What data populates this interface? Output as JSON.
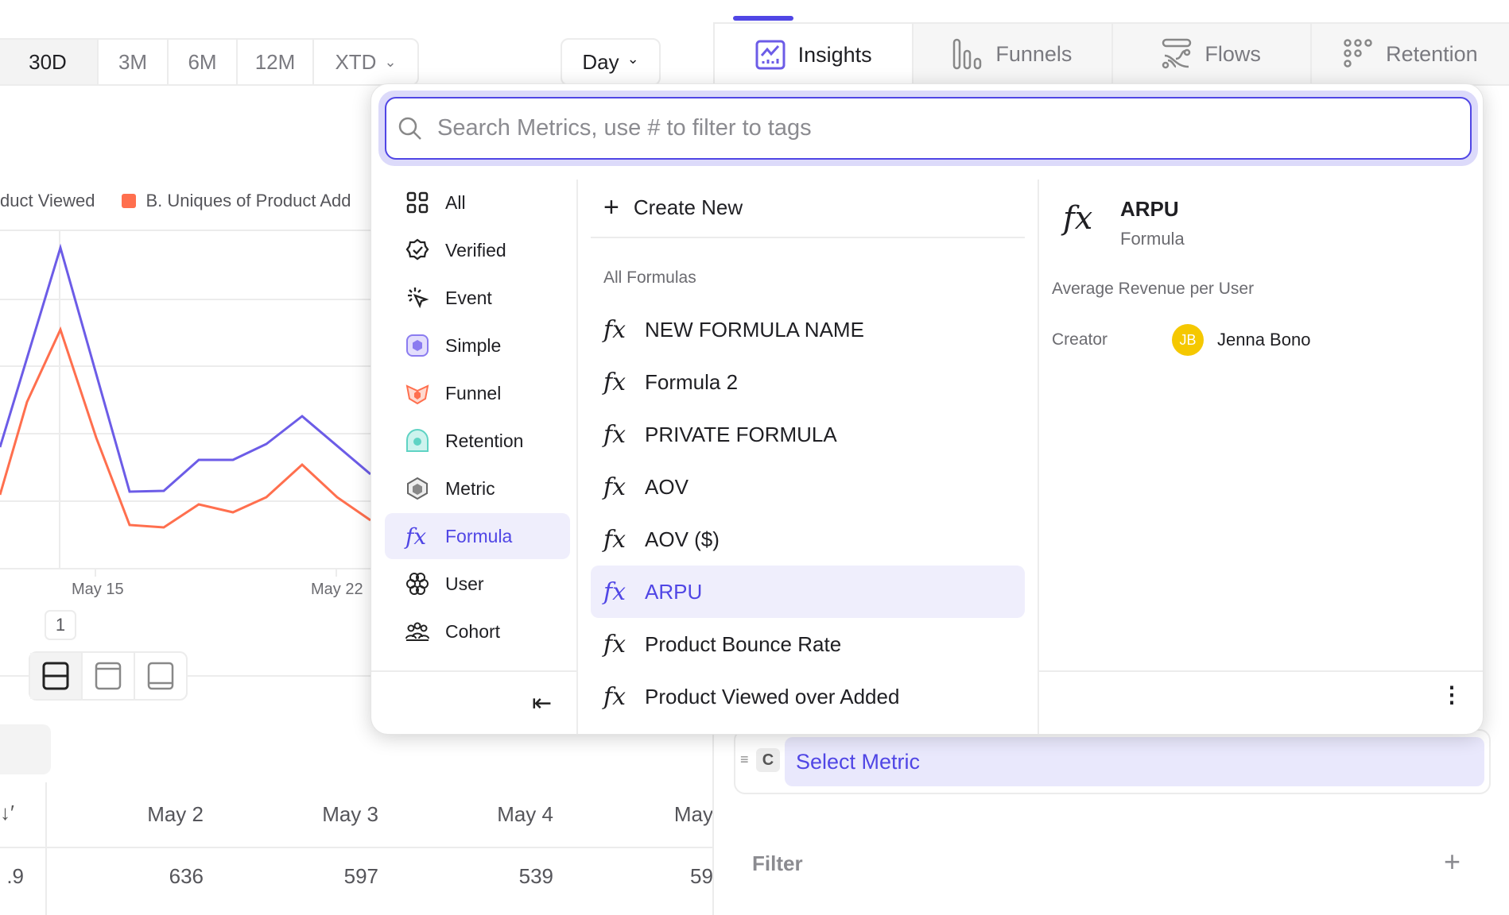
{
  "date_range": {
    "options": [
      "30D",
      "3M",
      "6M",
      "12M",
      "XTD"
    ],
    "selected": "30D"
  },
  "interval": {
    "label": "Day"
  },
  "nav_tabs": [
    {
      "label": "Insights",
      "active": true
    },
    {
      "label": "Funnels"
    },
    {
      "label": "Flows"
    },
    {
      "label": "Retention"
    }
  ],
  "legend": {
    "a_label": "duct Viewed",
    "b_label": "B. Uniques of Product Add",
    "b_color": "#ff6f4e",
    "a_color": "#6c5ce7"
  },
  "chart": {
    "x_ticks": [
      "May 15",
      "May 22"
    ]
  },
  "page_badge": "1",
  "table": {
    "headers": [
      "May 2",
      "May 3",
      "May 4",
      "May"
    ],
    "first_cell": ".9",
    "values": [
      "636",
      "597",
      "539",
      "59"
    ]
  },
  "dropdown": {
    "search_placeholder": "Search Metrics, use # to filter to tags",
    "categories": [
      {
        "label": "All",
        "icon": "grid-icon"
      },
      {
        "label": "Verified",
        "icon": "verified-badge-icon"
      },
      {
        "label": "Event",
        "icon": "cursor-click-icon"
      },
      {
        "label": "Simple",
        "icon": "simple-metric-icon"
      },
      {
        "label": "Funnel",
        "icon": "funnel-icon"
      },
      {
        "label": "Retention",
        "icon": "retention-icon"
      },
      {
        "label": "Metric",
        "icon": "metric-hexagon-icon"
      },
      {
        "label": "Formula",
        "icon": "fx-icon",
        "active": true
      },
      {
        "label": "User",
        "icon": "user-flower-icon"
      },
      {
        "label": "Cohort",
        "icon": "cohort-icon"
      }
    ],
    "create_new": "Create New",
    "section_title": "All Formulas",
    "formulas": [
      {
        "label": "NEW FORMULA NAME"
      },
      {
        "label": "Formula 2"
      },
      {
        "label": "PRIVATE FORMULA"
      },
      {
        "label": "AOV"
      },
      {
        "label": "AOV ($)"
      },
      {
        "label": "ARPU",
        "active": true
      },
      {
        "label": "Product Bounce Rate"
      },
      {
        "label": "Product Viewed over Added"
      }
    ],
    "detail": {
      "title": "ARPU",
      "type": "Formula",
      "description": "Average Revenue per User",
      "creator_label": "Creator",
      "creator_initials": "JB",
      "creator_name": "Jenna Bono",
      "avatar_color": "#f5c800"
    }
  },
  "metric_row": {
    "letter": "C",
    "select_label": "Select Metric"
  },
  "filter": {
    "label": "Filter"
  },
  "accent": "#5046e5"
}
